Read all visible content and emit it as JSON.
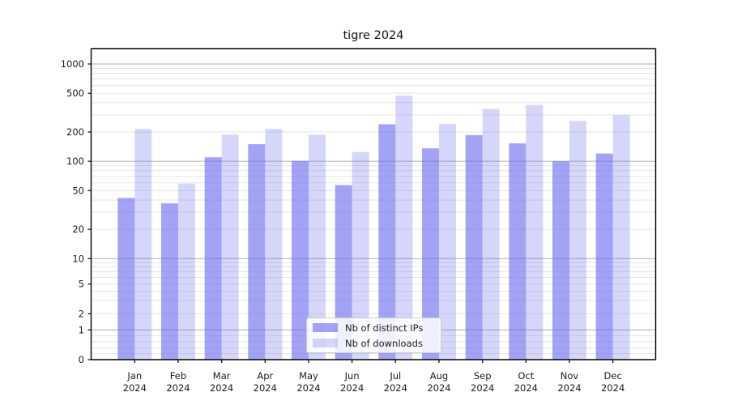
{
  "chart_data": {
    "type": "bar",
    "title": "tigre 2024",
    "categories": [
      "Jan 2024",
      "Feb 2024",
      "Mar 2024",
      "Apr 2024",
      "May 2024",
      "Jun 2024",
      "Jul 2024",
      "Aug 2024",
      "Sep 2024",
      "Oct 2024",
      "Nov 2024",
      "Dec 2024"
    ],
    "series": [
      {
        "name": "Nb of distinct IPs",
        "color": "#6666ee",
        "opacity": 0.6,
        "values": [
          42,
          37,
          110,
          150,
          101,
          57,
          240,
          136,
          186,
          153,
          100,
          120
        ]
      },
      {
        "name": "Nb of downloads",
        "color": "#6666ee",
        "opacity": 0.27,
        "values": [
          215,
          59,
          188,
          215,
          188,
          125,
          473,
          242,
          345,
          380,
          260,
          298
        ]
      }
    ],
    "xlabel": "",
    "ylabel": "",
    "yscale": "log-above-1 with 0 baseline (symlog-like)",
    "yticks": [
      0,
      1,
      2,
      5,
      10,
      20,
      50,
      100,
      200,
      500,
      1000
    ],
    "ylim": [
      0,
      1450
    ],
    "grid": true,
    "legend_position": "lower center",
    "colors": {
      "bar_base": "#6666ee",
      "major_grid": "#adadad",
      "minor_grid": "#e5e5e5",
      "axis": "#000000",
      "text": "#1a1a1a"
    }
  }
}
